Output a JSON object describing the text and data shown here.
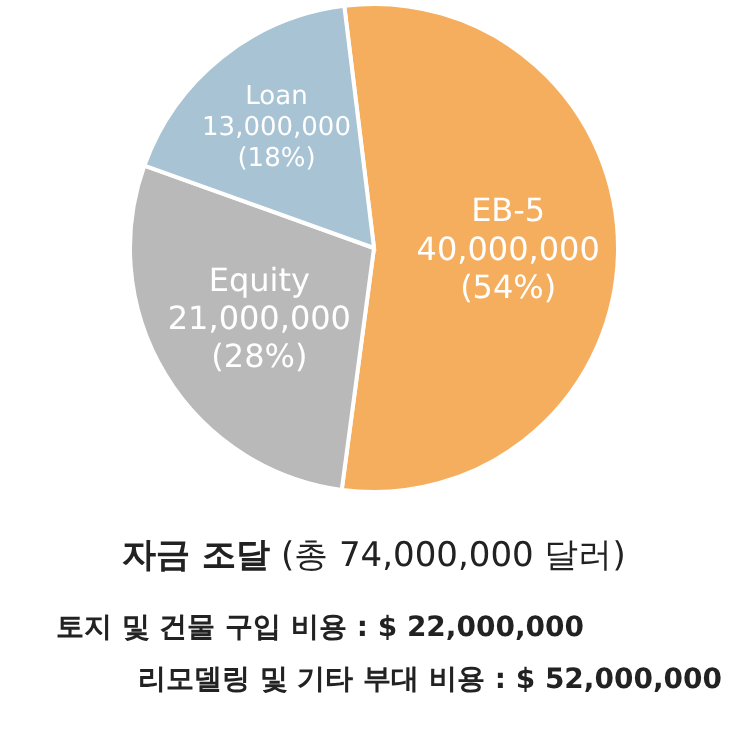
{
  "chart_data": {
    "type": "pie",
    "title": "**자금 조달** (총 74,000,000 달러)",
    "categories": [
      "EB-5",
      "Equity",
      "Loan"
    ],
    "values": [
      40000000,
      21000000,
      13000000
    ],
    "colors": [
      "#f5ae5e",
      "#b9b9b9",
      "#a8c3d3"
    ],
    "value_labels": [
      "40,000,000 (54%)",
      "21,000,000 (28%)",
      "13,000,000 (18%)"
    ],
    "annotations": [
      "토지 및 건물 구입  비용 : $ 22,000,000",
      "리모델링 및 기타 부대 비용 : $ 52,000,000"
    ]
  }
}
